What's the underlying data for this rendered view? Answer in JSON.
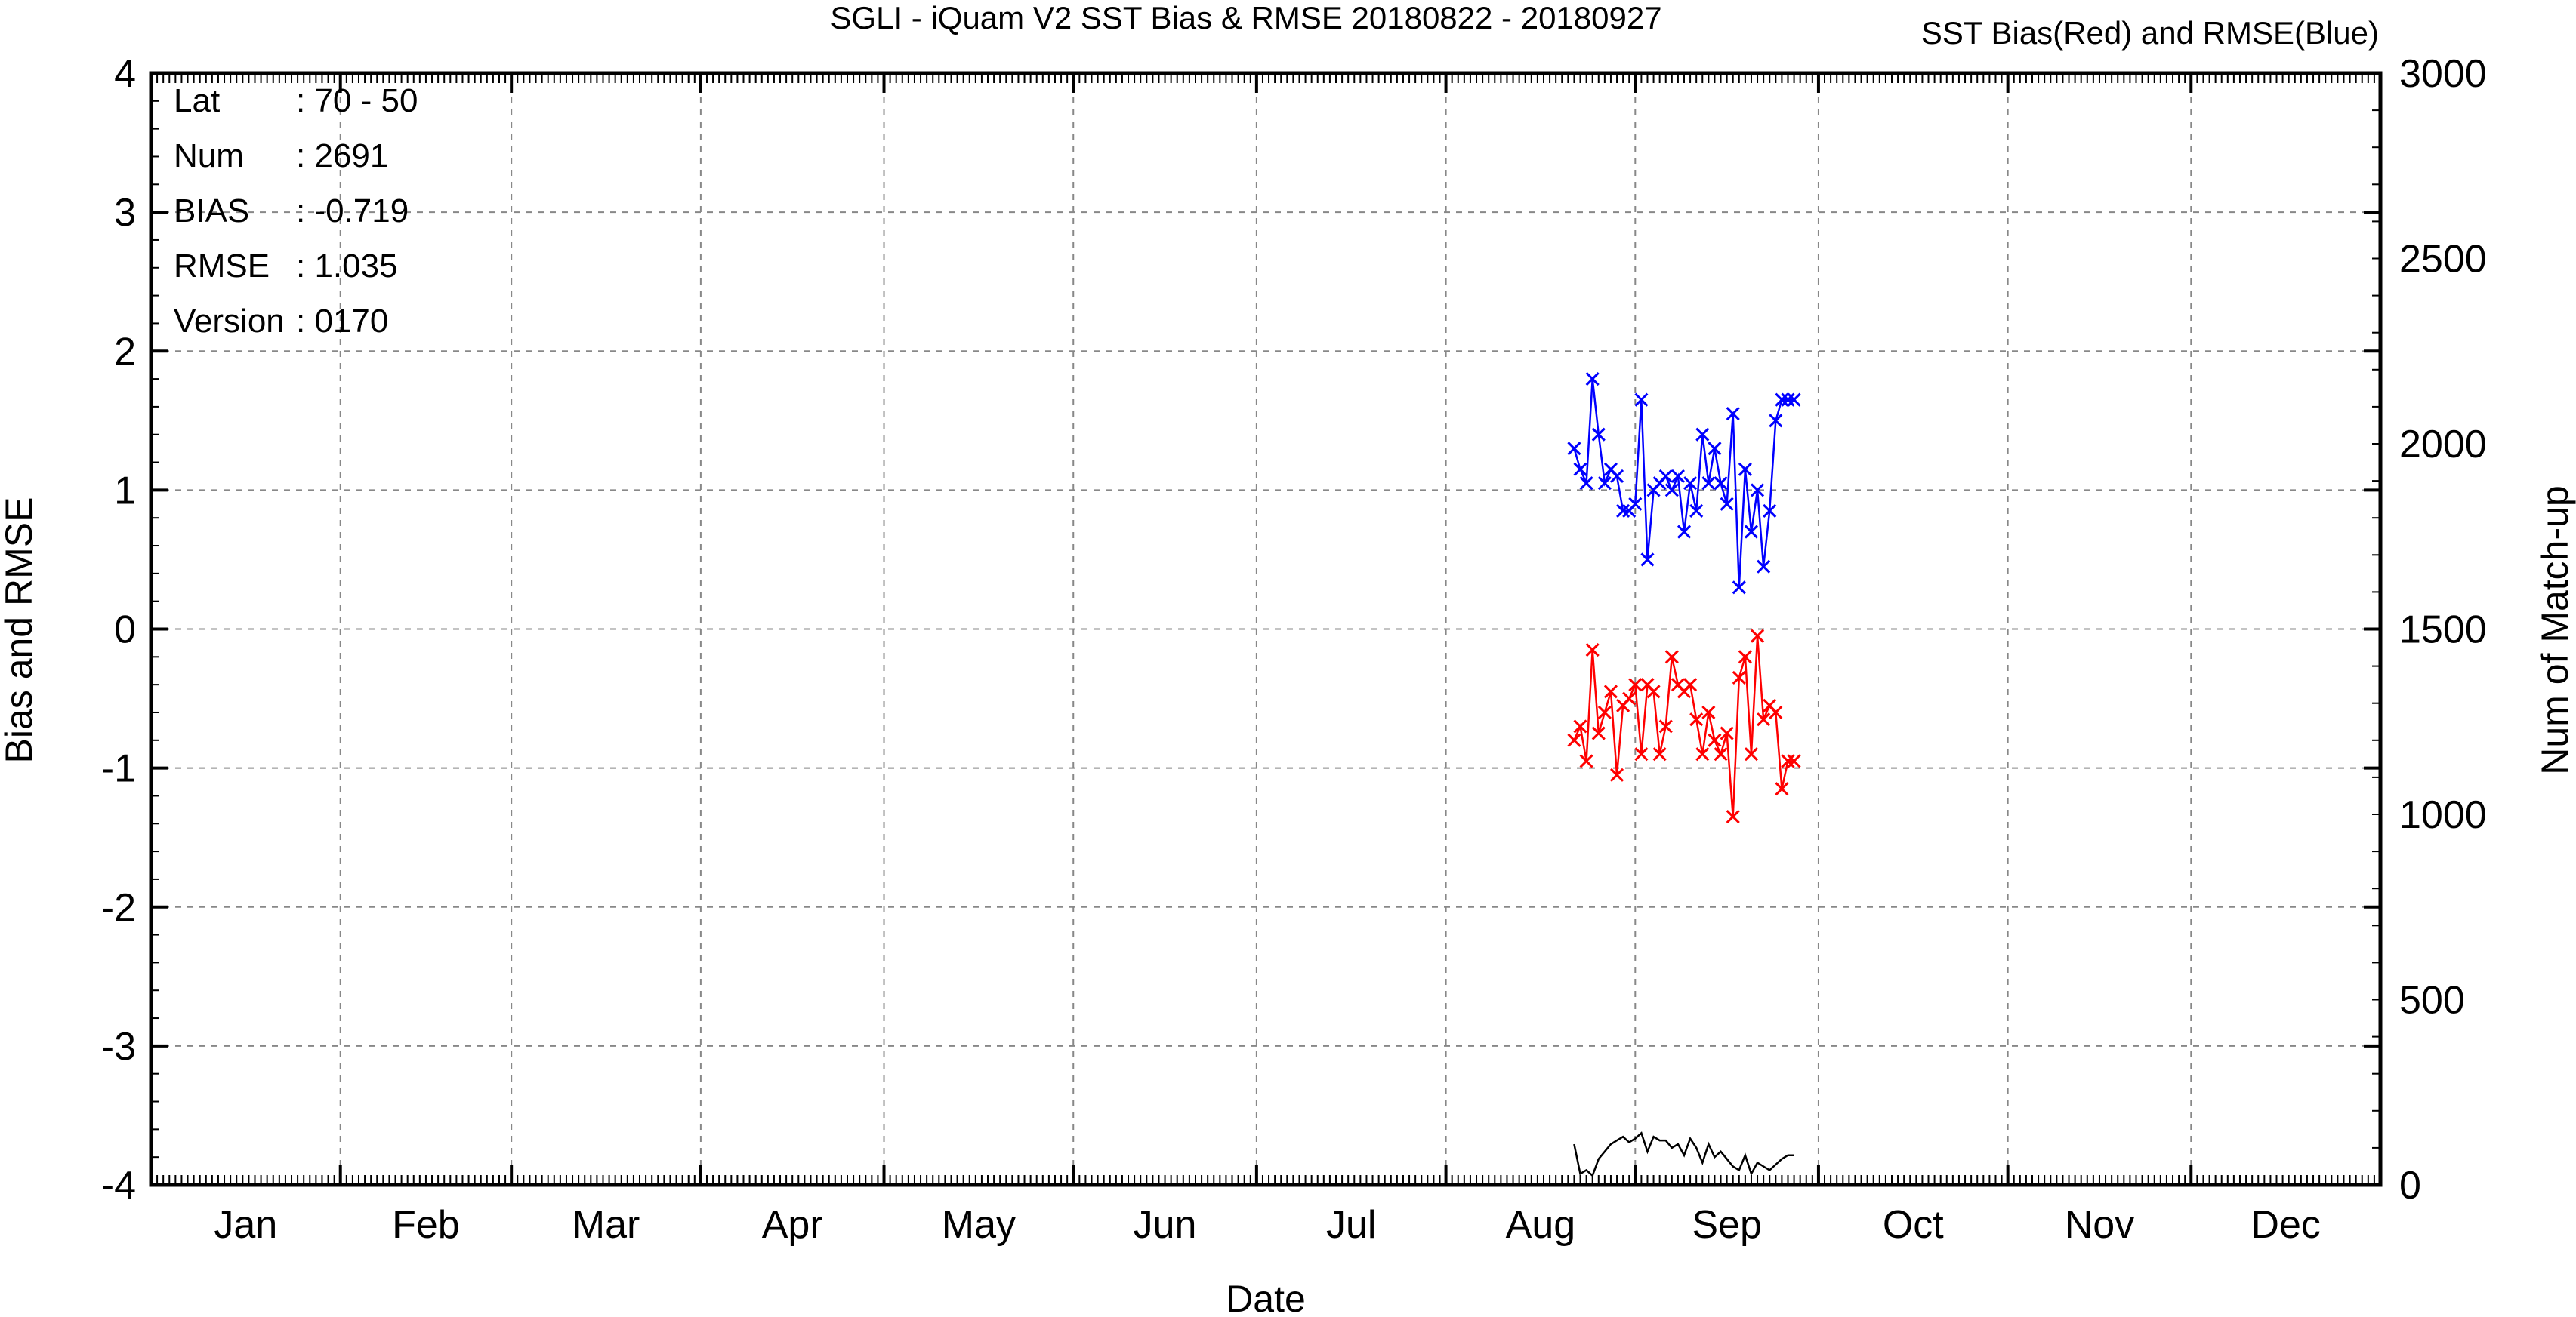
{
  "chart_data": {
    "type": "line",
    "title": "SGLI - iQuam V2 SST Bias & RMSE 20180822 - 20180927",
    "subtitle": "SST Bias(Red) and RMSE(Blue)",
    "xlabel": "Date",
    "ylabel": "Bias and RMSE",
    "y2label": "Num of Match-up",
    "ylim": [
      -4,
      4
    ],
    "y2lim": [
      0,
      3000
    ],
    "yticks": [
      "4",
      "3",
      "2",
      "1",
      "0",
      "-1",
      "-2",
      "-3",
      "-4"
    ],
    "y2ticks": [
      "3000",
      "2500",
      "2000",
      "1500",
      "1000",
      "500",
      "0"
    ],
    "months": [
      "Jan",
      "Feb",
      "Mar",
      "Apr",
      "May",
      "Jun",
      "Jul",
      "Aug",
      "Sep",
      "Oct",
      "Nov",
      "Dec"
    ],
    "grid": true,
    "info": [
      {
        "key": "Lat",
        "value": ": 70 - 50"
      },
      {
        "key": "Num",
        "value": ": 2691"
      },
      {
        "key": "BIAS",
        "value": ": -0.719"
      },
      {
        "key": "RMSE",
        "value": ": 1.035"
      },
      {
        "key": "Version",
        "value": ": 0170"
      }
    ],
    "x_dates": [
      "2018-08-22",
      "2018-08-23",
      "2018-08-24",
      "2018-08-25",
      "2018-08-26",
      "2018-08-27",
      "2018-08-28",
      "2018-08-29",
      "2018-08-30",
      "2018-08-31",
      "2018-09-01",
      "2018-09-02",
      "2018-09-03",
      "2018-09-04",
      "2018-09-05",
      "2018-09-06",
      "2018-09-07",
      "2018-09-08",
      "2018-09-09",
      "2018-09-10",
      "2018-09-11",
      "2018-09-12",
      "2018-09-13",
      "2018-09-14",
      "2018-09-15",
      "2018-09-16",
      "2018-09-17",
      "2018-09-18",
      "2018-09-19",
      "2018-09-20",
      "2018-09-21",
      "2018-09-22",
      "2018-09-23",
      "2018-09-24",
      "2018-09-25",
      "2018-09-26",
      "2018-09-27"
    ],
    "series": [
      {
        "color": "#ff0000",
        "axis": "left",
        "marker": "x",
        "values": [
          -0.8,
          -0.7,
          -0.95,
          -0.15,
          -0.75,
          -0.6,
          -0.45,
          -1.05,
          -0.55,
          -0.5,
          -0.4,
          -0.9,
          -0.4,
          -0.45,
          -0.9,
          -0.7,
          -0.2,
          -0.4,
          -0.45,
          -0.4,
          -0.65,
          -0.9,
          -0.6,
          -0.8,
          -0.9,
          -0.75,
          -1.35,
          -0.35,
          -0.2,
          -0.9,
          -0.05,
          -0.65,
          -0.55,
          -0.6,
          -1.15,
          -0.95,
          -0.95
        ]
      },
      {
        "color": "#0000ff",
        "axis": "left",
        "marker": "x",
        "values": [
          1.3,
          1.15,
          1.05,
          1.8,
          1.4,
          1.05,
          1.15,
          1.1,
          0.85,
          0.85,
          0.9,
          1.65,
          0.5,
          1.0,
          1.05,
          1.1,
          1.0,
          1.1,
          0.7,
          1.05,
          0.85,
          1.4,
          1.05,
          1.3,
          1.05,
          0.9,
          1.55,
          0.3,
          1.15,
          0.7,
          1.0,
          0.45,
          0.85,
          1.5,
          1.65,
          1.65,
          1.65
        ]
      },
      {
        "color": "#000000",
        "axis": "right",
        "marker": "none",
        "values": [
          110,
          30,
          40,
          25,
          70,
          90,
          110,
          120,
          130,
          115,
          125,
          140,
          90,
          130,
          120,
          120,
          100,
          110,
          80,
          125,
          100,
          60,
          110,
          75,
          90,
          70,
          50,
          40,
          80,
          30,
          60,
          50,
          40,
          55,
          70,
          80,
          80
        ]
      }
    ]
  }
}
